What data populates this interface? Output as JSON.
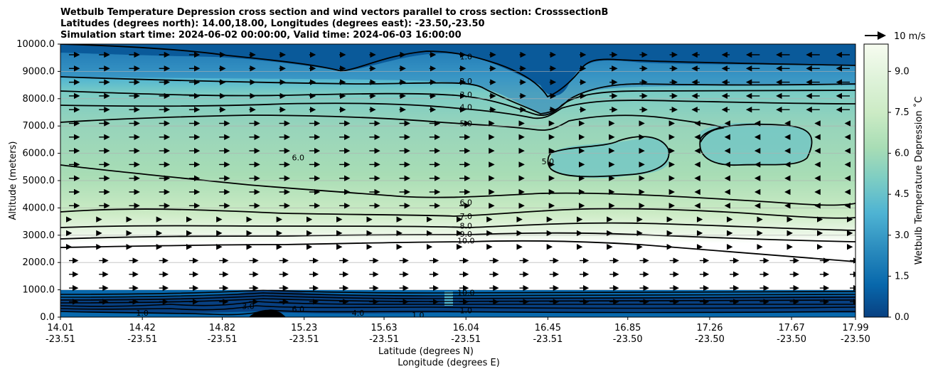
{
  "chart_data": {
    "type": "contour",
    "title_lines": [
      "Wetbulb Temperature Depression cross section and wind vectors parallel to cross section: CrosssectionB",
      "Latitudes (degrees north): 14.00,18.00, Longitudes (degrees east): -23.50,-23.50",
      "Simulation start time: 2024-06-02 00:00:00, Valid time: 2024-06-03 16:00:00"
    ],
    "ylabel": "Altitude (meters)",
    "xlabel_lat": "Latitude (degrees N)",
    "xlabel_lon": "Longitude (degrees E)",
    "y_range": [
      0,
      10000
    ],
    "y_ticks": [
      "0.0",
      "1000.0",
      "2000.0",
      "3000.0",
      "4000.0",
      "5000.0",
      "6000.0",
      "7000.0",
      "8000.0",
      "9000.0",
      "10000.0"
    ],
    "x_range": [
      14.01,
      17.99
    ],
    "x_ticks": [
      {
        "lat": "14.01",
        "lon": "-23.51",
        "value": 14.01
      },
      {
        "lat": "14.42",
        "lon": "-23.51",
        "value": 14.42
      },
      {
        "lat": "14.82",
        "lon": "-23.51",
        "value": 14.82
      },
      {
        "lat": "15.23",
        "lon": "-23.51",
        "value": 15.23
      },
      {
        "lat": "15.63",
        "lon": "-23.51",
        "value": 15.63
      },
      {
        "lat": "16.04",
        "lon": "-23.51",
        "value": 16.04
      },
      {
        "lat": "16.45",
        "lon": "-23.51",
        "value": 16.45
      },
      {
        "lat": "16.85",
        "lon": "-23.50",
        "value": 16.85
      },
      {
        "lat": "17.26",
        "lon": "-23.50",
        "value": 17.26
      },
      {
        "lat": "17.67",
        "lon": "-23.50",
        "value": 17.67
      },
      {
        "lat": "17.99",
        "lon": "-23.50",
        "value": 17.99
      }
    ],
    "colorbar": {
      "label": "Wetbulb Temperature Depression ˚C",
      "range": [
        0,
        10
      ],
      "ticks": [
        "0.0",
        "1.5",
        "3.0",
        "4.5",
        "6.0",
        "7.5",
        "9.0"
      ],
      "colors": [
        "#084081",
        "#0868ac",
        "#2b8cbe",
        "#4eb3d3",
        "#7bccc4",
        "#a8ddb5",
        "#ccebc5",
        "#e0f3db",
        "#f7fcf0"
      ]
    },
    "wind_reference": "10 m/s",
    "contour_labels": [
      {
        "text": "1.0",
        "x": 16.04,
        "y": 9550
      },
      {
        "text": "2.0",
        "x": 16.04,
        "y": 8650
      },
      {
        "text": "3.0",
        "x": 16.04,
        "y": 8150
      },
      {
        "text": "4.0",
        "x": 16.04,
        "y": 7700
      },
      {
        "text": "5.0",
        "x": 16.04,
        "y": 7100
      },
      {
        "text": "6.0",
        "x": 15.2,
        "y": 5850
      },
      {
        "text": "5.0",
        "x": 16.45,
        "y": 5700
      },
      {
        "text": "6.0",
        "x": 16.04,
        "y": 4200
      },
      {
        "text": "7.0",
        "x": 16.04,
        "y": 3700
      },
      {
        "text": "8.0",
        "x": 16.04,
        "y": 3350
      },
      {
        "text": "9.0",
        "x": 16.04,
        "y": 3050
      },
      {
        "text": "10.0",
        "x": 16.04,
        "y": 2800
      },
      {
        "text": "10.0",
        "x": 16.04,
        "y": 900
      },
      {
        "text": "1.0",
        "x": 16.04,
        "y": 250
      },
      {
        "text": "1.0",
        "x": 14.42,
        "y": 150
      },
      {
        "text": "3.0",
        "x": 14.95,
        "y": 400
      },
      {
        "text": "6.0",
        "x": 15.2,
        "y": 300
      },
      {
        "text": "4.0",
        "x": 15.5,
        "y": 150
      },
      {
        "text": "1.0",
        "x": 15.8,
        "y": 80
      }
    ]
  }
}
